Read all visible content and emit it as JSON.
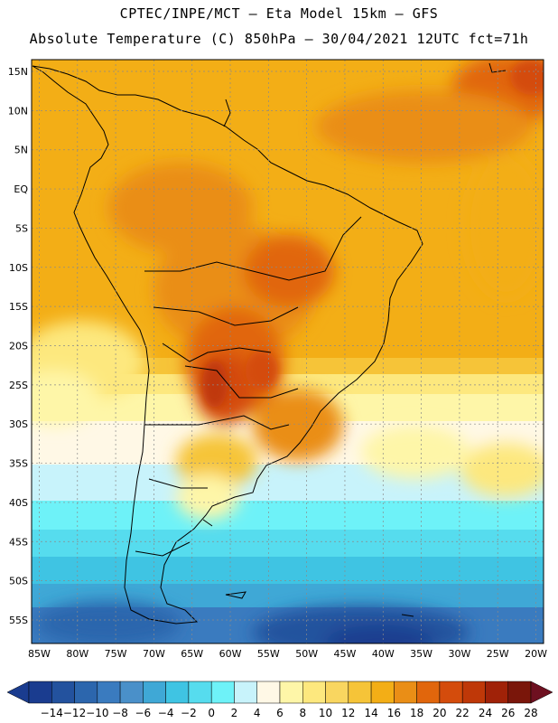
{
  "header": {
    "line1": "CPTEC/INPE/MCT –  Eta Model 15km – GFS",
    "line2": "Absolute Temperature (C) 850hPa – 30/04/2021 12UTC fct=71h"
  },
  "map": {
    "lat_labels": [
      "15N",
      "10N",
      "5N",
      "EQ",
      "5S",
      "10S",
      "15S",
      "20S",
      "25S",
      "30S",
      "35S",
      "40S",
      "45S",
      "50S",
      "55S"
    ],
    "lon_labels": [
      "85W",
      "80W",
      "75W",
      "70W",
      "65W",
      "60W",
      "55W",
      "50W",
      "45W",
      "40W",
      "35W",
      "30W",
      "25W",
      "20W"
    ],
    "extent": {
      "lon": [
        -86,
        -19
      ],
      "lat": [
        -58,
        16.5
      ]
    }
  },
  "colorbar": {
    "labels": [
      "-14",
      "-12",
      "-10",
      "-8",
      "-6",
      "-4",
      "-2",
      "0",
      "2",
      "4",
      "6",
      "8",
      "10",
      "12",
      "14",
      "16",
      "18",
      "20",
      "22",
      "24",
      "26",
      "28"
    ],
    "colors": [
      "#1a3c8f",
      "#23529e",
      "#2c66ad",
      "#3a7bbf",
      "#4a90c9",
      "#3fa8d6",
      "#3fc4e3",
      "#56dcee",
      "#6ef2f8",
      "#c8f3fb",
      "#fff8e6",
      "#fef6a8",
      "#fde87e",
      "#f9d660",
      "#f6c438",
      "#f3ae16",
      "#ea8e16",
      "#e1660c",
      "#d44c0c",
      "#bf3808",
      "#a02208",
      "#7a160a"
    ],
    "units": "C"
  },
  "colors": {
    "warm_core": "#c8440c",
    "mid": "#f0a818",
    "cold": "#2a5ea6",
    "coast": "#000000",
    "grid": "#8a8a8a"
  }
}
